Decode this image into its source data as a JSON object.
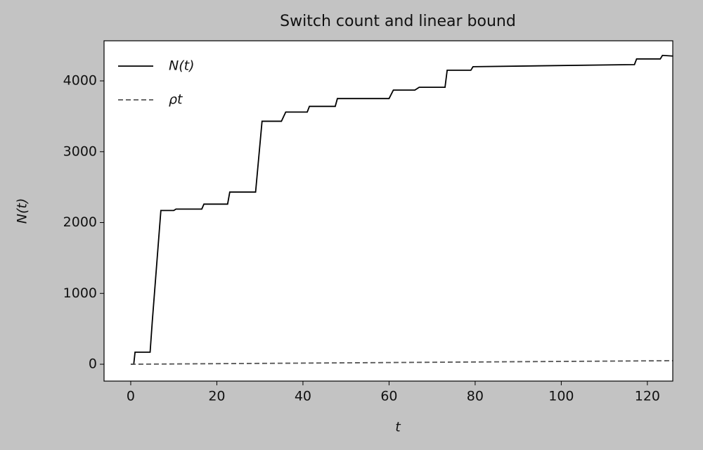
{
  "chart_data": {
    "type": "line",
    "title": "Switch count and linear bound",
    "xlabel": "t",
    "ylabel": "N(t)",
    "xlim": [
      -6.2,
      125.9
    ],
    "ylim": [
      -238,
      4566
    ],
    "xticks": [
      0,
      20,
      40,
      60,
      80,
      100,
      120
    ],
    "yticks": [
      0,
      1000,
      2000,
      3000,
      4000
    ],
    "legend": "upper left",
    "grid": false,
    "series": [
      {
        "name": "N(t)",
        "color": "#000000",
        "dash": false,
        "x": [
          0,
          0.7,
          1,
          4.5,
          5,
          7,
          10,
          10.5,
          16.5,
          17,
          22.5,
          23,
          29,
          30.5,
          35,
          36,
          41,
          41.5,
          47.5,
          48,
          60,
          61,
          66,
          67,
          73,
          73.5,
          79,
          79.5,
          117,
          117.5,
          123,
          123.5,
          126
        ],
        "values": [
          0,
          0,
          170,
          170,
          600,
          2170,
          2170,
          2190,
          2190,
          2260,
          2260,
          2430,
          2430,
          3430,
          3430,
          3560,
          3560,
          3640,
          3640,
          3750,
          3750,
          3870,
          3870,
          3910,
          3910,
          4150,
          4150,
          4200,
          4230,
          4310,
          4310,
          4360,
          4350
        ]
      },
      {
        "name": "ρt",
        "color": "#555555",
        "dash": true,
        "x": [
          0,
          126
        ],
        "values": [
          0,
          50
        ]
      }
    ]
  }
}
